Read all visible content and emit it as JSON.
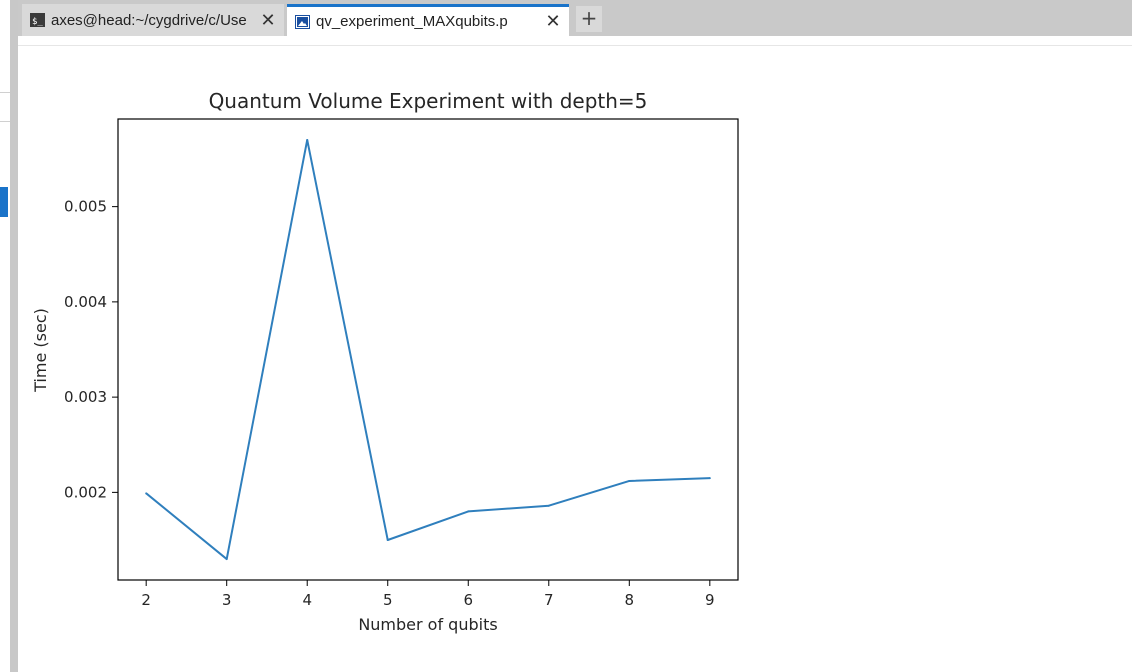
{
  "tabs": [
    {
      "label": "axes@head:~/cygdrive/c/Use",
      "icon": "terminal-icon",
      "active": false
    },
    {
      "label": "qv_experiment_MAXqubits.p",
      "icon": "image-icon",
      "active": true
    }
  ],
  "new_tab_symbol": "+",
  "close_symbol": "✕",
  "colors": {
    "line": "#2f7fbd",
    "accent": "#1a73c9"
  },
  "chart_data": {
    "type": "line",
    "title": "Quantum Volume Experiment with depth=5",
    "xlabel": "Number of qubits",
    "ylabel": "Time (sec)",
    "x": [
      2,
      3,
      4,
      5,
      6,
      7,
      8,
      9
    ],
    "series": [
      {
        "values": [
          0.00199,
          0.0013,
          0.0057,
          0.0015,
          0.0018,
          0.00186,
          0.00212,
          0.00215
        ]
      }
    ],
    "xlim": [
      1.65,
      9.35
    ],
    "ylim": [
      0.00108,
      0.00592
    ],
    "xticks": [
      2,
      3,
      4,
      5,
      6,
      7,
      8,
      9
    ],
    "yticks": [
      0.002,
      0.003,
      0.004,
      0.005
    ],
    "ytick_labels": [
      "0.002",
      "0.003",
      "0.004",
      "0.005"
    ],
    "grid": false,
    "legend": "none"
  }
}
